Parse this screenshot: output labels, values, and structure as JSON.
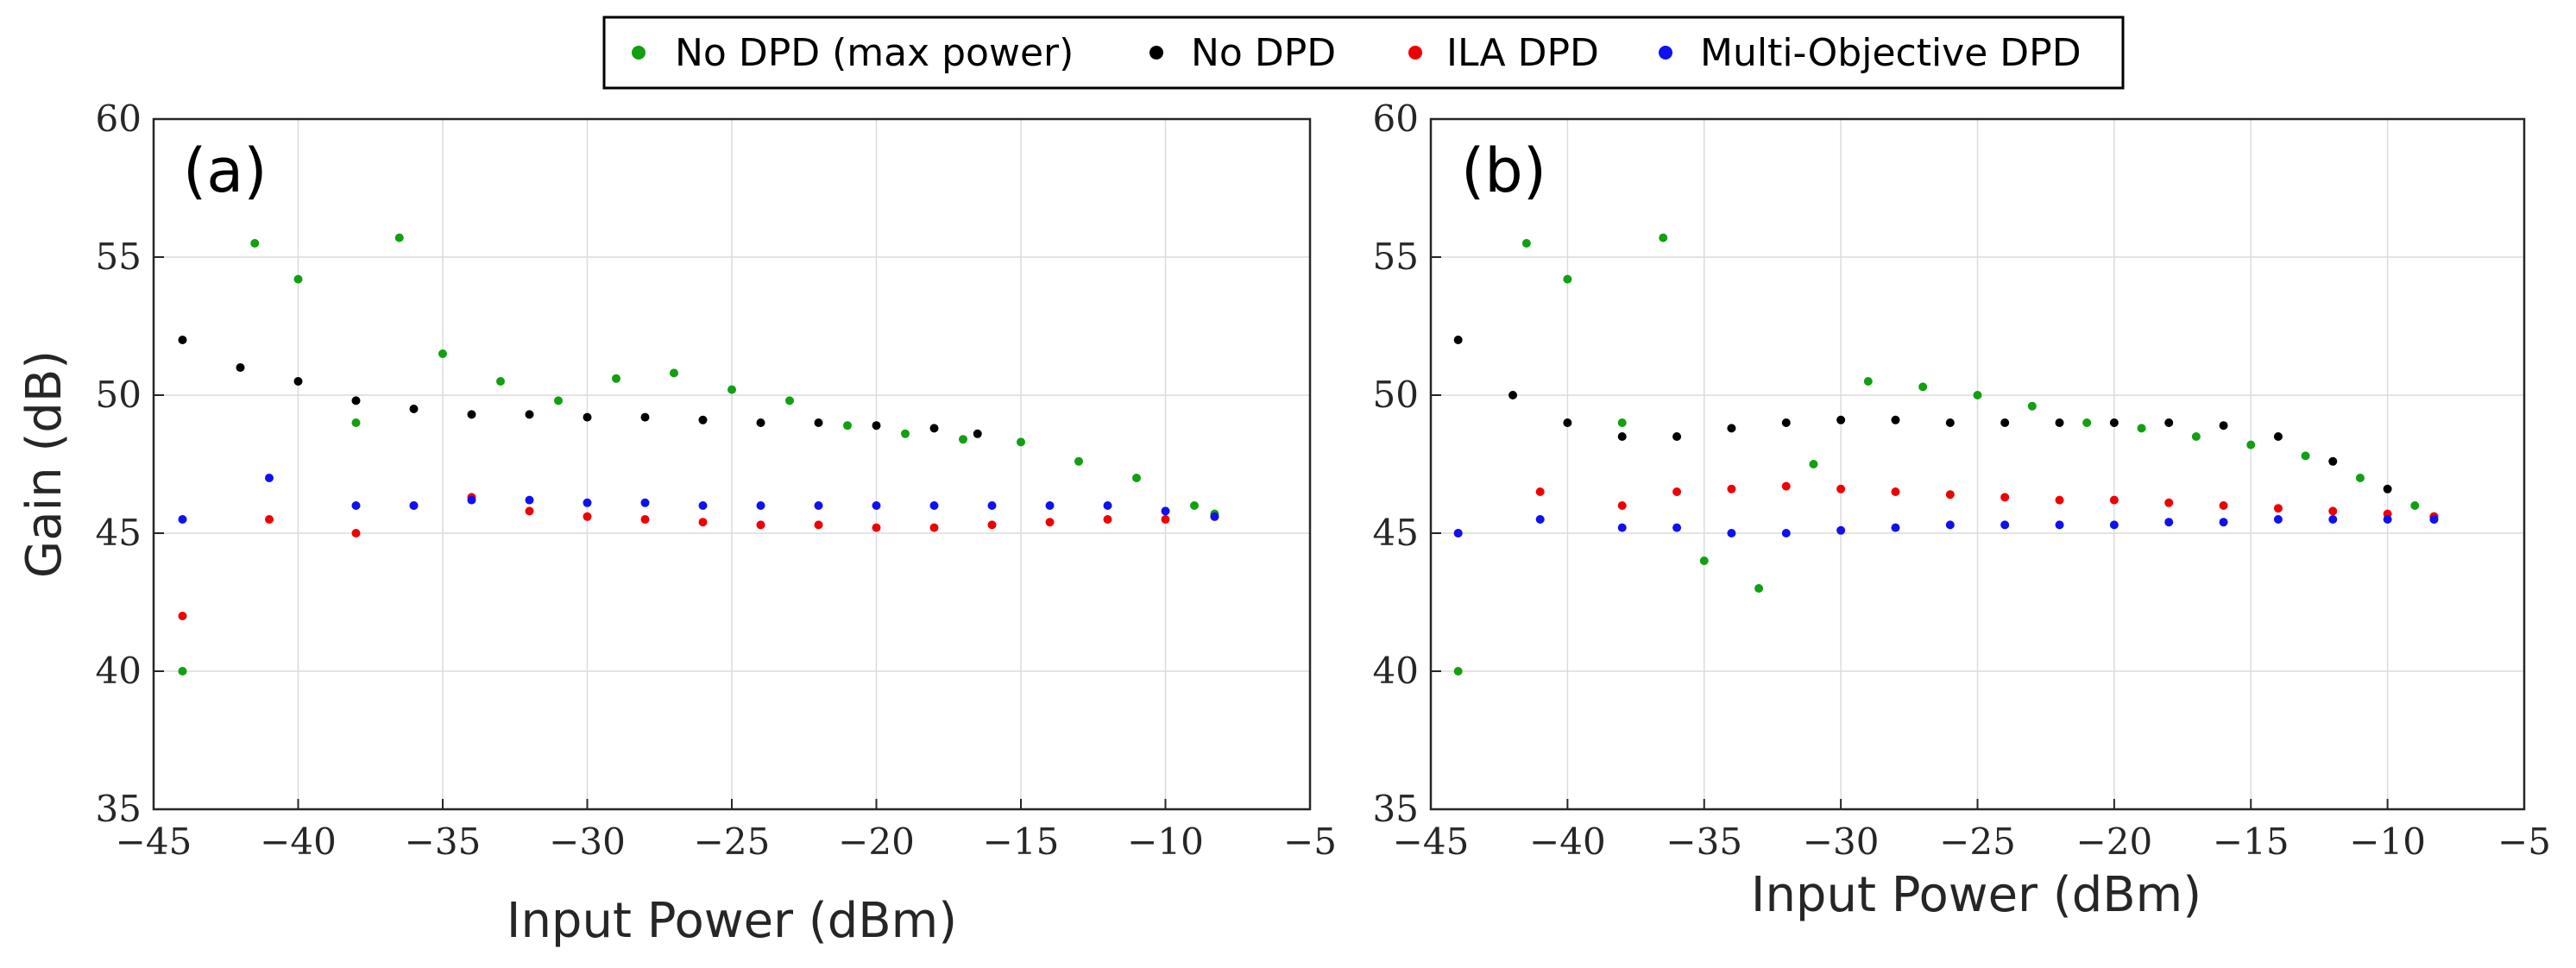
{
  "chart_data": {
    "legend": {
      "placement": "top-center",
      "entries": [
        {
          "label": "No DPD (max power)",
          "color": "#10a010"
        },
        {
          "label": "No DPD",
          "color": "#000000"
        },
        {
          "label": "ILA DPD",
          "color": "#f00000"
        },
        {
          "label": "Multi-Objective DPD",
          "color": "#1010f0"
        }
      ]
    },
    "panels": [
      {
        "type": "scatter",
        "panel_label": "(a)",
        "xlabel": "Input Power (dBm)",
        "ylabel": "Gain (dB)",
        "xlim": [
          -45,
          -5
        ],
        "ylim": [
          35,
          60
        ],
        "grid": true,
        "x_ticks": [
          -45,
          -40,
          -35,
          -30,
          -25,
          -20,
          -15,
          -10,
          -5
        ],
        "y_ticks": [
          35,
          40,
          45,
          50,
          55,
          60
        ],
        "x_tick_labels": [
          "−45",
          "−40",
          "−35",
          "−30",
          "−25",
          "−20",
          "−15",
          "−10",
          "−5"
        ],
        "y_tick_labels": [
          "35",
          "40",
          "45",
          "50",
          "55",
          "60"
        ],
        "series": [
          {
            "name": "No DPD (max power)",
            "color": "#10a010",
            "x": [
              -44,
              -41.5,
              -40,
              -38,
              -36.5,
              -35,
              -33,
              -31,
              -29,
              -27,
              -25,
              -23,
              -21,
              -19,
              -17,
              -15,
              -13,
              -11,
              -9,
              -8.3
            ],
            "y": [
              40.0,
              55.5,
              54.2,
              49.0,
              55.7,
              51.5,
              50.5,
              49.8,
              50.6,
              50.8,
              50.2,
              49.8,
              48.9,
              48.6,
              48.4,
              48.3,
              47.6,
              47.0,
              46.0,
              45.7
            ]
          },
          {
            "name": "No DPD",
            "color": "#000000",
            "x": [
              -44,
              -42,
              -40,
              -38,
              -36,
              -34,
              -32,
              -30,
              -28,
              -26,
              -24,
              -22,
              -20,
              -18,
              -16.5
            ],
            "y": [
              52.0,
              51.0,
              50.5,
              49.8,
              49.5,
              49.3,
              49.3,
              49.2,
              49.2,
              49.1,
              49.0,
              49.0,
              48.9,
              48.8,
              48.6
            ]
          },
          {
            "name": "ILA DPD",
            "color": "#f00000",
            "x": [
              -44,
              -41,
              -38,
              -36,
              -34,
              -32,
              -30,
              -28,
              -26,
              -24,
              -22,
              -20,
              -18,
              -16,
              -14,
              -12,
              -10,
              -8.3
            ],
            "y": [
              42.0,
              45.5,
              45.0,
              46.0,
              46.3,
              45.8,
              45.6,
              45.5,
              45.4,
              45.3,
              45.3,
              45.2,
              45.2,
              45.3,
              45.4,
              45.5,
              45.5,
              45.6
            ]
          },
          {
            "name": "Multi-Objective DPD",
            "color": "#1010f0",
            "x": [
              -44,
              -41,
              -38,
              -36,
              -34,
              -32,
              -30,
              -28,
              -26,
              -24,
              -22,
              -20,
              -18,
              -16,
              -14,
              -12,
              -10,
              -8.3
            ],
            "y": [
              45.5,
              47.0,
              46.0,
              46.0,
              46.2,
              46.2,
              46.1,
              46.1,
              46.0,
              46.0,
              46.0,
              46.0,
              46.0,
              46.0,
              46.0,
              46.0,
              45.8,
              45.6
            ]
          }
        ]
      },
      {
        "type": "scatter",
        "panel_label": "(b)",
        "xlabel": "Input Power (dBm)",
        "ylabel": "",
        "xlim": [
          -45,
          -5
        ],
        "ylim": [
          35,
          60
        ],
        "grid": true,
        "x_ticks": [
          -45,
          -40,
          -35,
          -30,
          -25,
          -20,
          -15,
          -10,
          -5
        ],
        "y_ticks": [
          35,
          40,
          45,
          50,
          55,
          60
        ],
        "x_tick_labels": [
          "−45",
          "−40",
          "−35",
          "−30",
          "−25",
          "−20",
          "−15",
          "−10",
          "−5"
        ],
        "y_tick_labels": [
          "35",
          "40",
          "45",
          "50",
          "55",
          "60"
        ],
        "series": [
          {
            "name": "No DPD (max power)",
            "color": "#10a010",
            "x": [
              -44,
              -41.5,
              -40,
              -38,
              -36.5,
              -35,
              -33,
              -31,
              -29,
              -27,
              -25,
              -23,
              -21,
              -19,
              -17,
              -15,
              -13,
              -11,
              -9,
              -8.3
            ],
            "y": [
              40.0,
              55.5,
              54.2,
              49.0,
              55.7,
              44.0,
              43.0,
              47.5,
              50.5,
              50.3,
              50.0,
              49.6,
              49.0,
              48.8,
              48.5,
              48.2,
              47.8,
              47.0,
              46.0,
              45.5
            ]
          },
          {
            "name": "No DPD",
            "color": "#000000",
            "x": [
              -44,
              -42,
              -40,
              -38,
              -36,
              -34,
              -32,
              -30,
              -28,
              -26,
              -24,
              -22,
              -20,
              -18,
              -16,
              -14,
              -12,
              -10,
              -8.3
            ],
            "y": [
              52.0,
              50.0,
              49.0,
              48.5,
              48.5,
              48.8,
              49.0,
              49.1,
              49.1,
              49.0,
              49.0,
              49.0,
              49.0,
              49.0,
              48.9,
              48.5,
              47.6,
              46.6,
              45.6
            ]
          },
          {
            "name": "ILA DPD",
            "color": "#f00000",
            "x": [
              -44,
              -41,
              -38,
              -36,
              -34,
              -32,
              -30,
              -28,
              -26,
              -24,
              -22,
              -20,
              -18,
              -16,
              -14,
              -12,
              -10,
              -8.3
            ],
            "y": [
              45.0,
              46.5,
              46.0,
              46.5,
              46.6,
              46.7,
              46.6,
              46.5,
              46.4,
              46.3,
              46.2,
              46.2,
              46.1,
              46.0,
              45.9,
              45.8,
              45.7,
              45.6
            ]
          },
          {
            "name": "Multi-Objective DPD",
            "color": "#1010f0",
            "x": [
              -44,
              -41,
              -38,
              -36,
              -34,
              -32,
              -30,
              -28,
              -26,
              -24,
              -22,
              -20,
              -18,
              -16,
              -14,
              -12,
              -10,
              -8.3
            ],
            "y": [
              45.0,
              45.5,
              45.2,
              45.2,
              45.0,
              45.0,
              45.1,
              45.2,
              45.3,
              45.3,
              45.3,
              45.3,
              45.4,
              45.4,
              45.5,
              45.5,
              45.5,
              45.5
            ]
          }
        ]
      }
    ]
  }
}
